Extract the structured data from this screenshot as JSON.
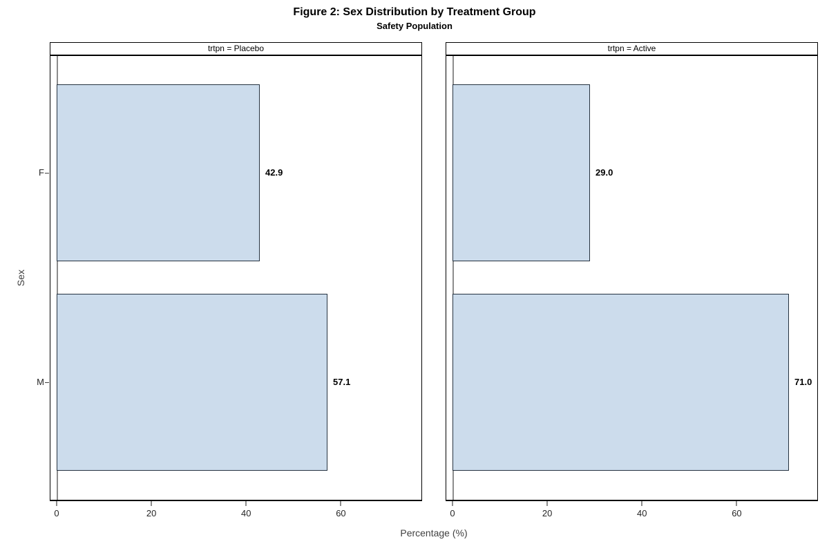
{
  "chart_data": {
    "type": "bar",
    "orientation": "horizontal",
    "title": "Figure 2: Sex Distribution by Treatment Group",
    "subtitle": "Safety Population",
    "xlabel": "Percentage (%)",
    "ylabel": "Sex",
    "categories": [
      "F",
      "M"
    ],
    "panels": [
      {
        "label": "trtpn = Placebo",
        "values": [
          42.9,
          57.1
        ],
        "data_labels": [
          "42.9",
          "57.1"
        ]
      },
      {
        "label": "trtpn = Active",
        "values": [
          29.0,
          71.0
        ],
        "data_labels": [
          "29.0",
          "71.0"
        ]
      }
    ],
    "xticks": [
      0,
      20,
      40,
      60
    ],
    "xlim": [
      0,
      77
    ],
    "grid": false,
    "legend": "none",
    "colors": {
      "bar_fill": "#ccdcec",
      "bar_border": "#24313f",
      "panel_border": "#000000",
      "axis_gray": "#8c8c8c",
      "title_text": "#000000",
      "axis_text": "#3f3f3f",
      "tick_text": "#262626"
    }
  }
}
